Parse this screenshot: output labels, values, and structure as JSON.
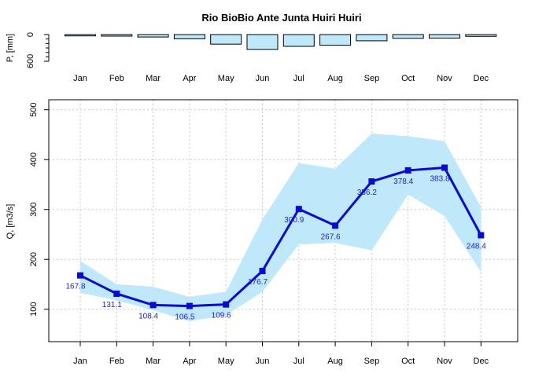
{
  "chart_data": [
    {
      "type": "bar",
      "title": "Rio BioBio Ante Junta Huiri Huiri",
      "ylabel": "P, [mm]",
      "categories": [
        "Jan",
        "Feb",
        "Mar",
        "Apr",
        "May",
        "Jun",
        "Jul",
        "Aug",
        "Sep",
        "Oct",
        "Nov",
        "Dec"
      ],
      "values": [
        30,
        35,
        55,
        95,
        215,
        335,
        265,
        240,
        140,
        85,
        80,
        40
      ],
      "ylim": [
        0,
        600
      ],
      "y_reversed": true,
      "yticks": [
        "0",
        "600"
      ],
      "bar_fill": "#bfe9fb",
      "bar_stroke": "#000000"
    },
    {
      "type": "line",
      "ylabel": "Q, [m3/s]",
      "categories": [
        "Jan",
        "Feb",
        "Mar",
        "Apr",
        "May",
        "Jun",
        "Jul",
        "Aug",
        "Sep",
        "Oct",
        "Nov",
        "Dec"
      ],
      "values": [
        167.8,
        131.1,
        108.4,
        106.5,
        109.6,
        176.7,
        300.9,
        267.6,
        356.2,
        378.4,
        383.8,
        248.4
      ],
      "value_labels": [
        "167.8",
        "131.1",
        "108.4",
        "106.5",
        "109.6",
        "176.7",
        "300.9",
        "267.6",
        "356.2",
        "378.4",
        "383.8",
        "248.4"
      ],
      "band_upper": [
        197,
        150,
        145,
        125,
        135,
        280,
        393,
        382,
        452,
        447,
        437,
        305
      ],
      "band_lower": [
        133,
        118,
        98,
        76,
        88,
        135,
        230,
        233,
        218,
        330,
        287,
        175
      ],
      "ylim": [
        35,
        520
      ],
      "yticks": [
        "100",
        "200",
        "300",
        "400",
        "500"
      ],
      "grid": true,
      "line_color": "#0a0ad6",
      "band_color": "#bfe9fb",
      "label_color": "#1f1fcc"
    }
  ]
}
